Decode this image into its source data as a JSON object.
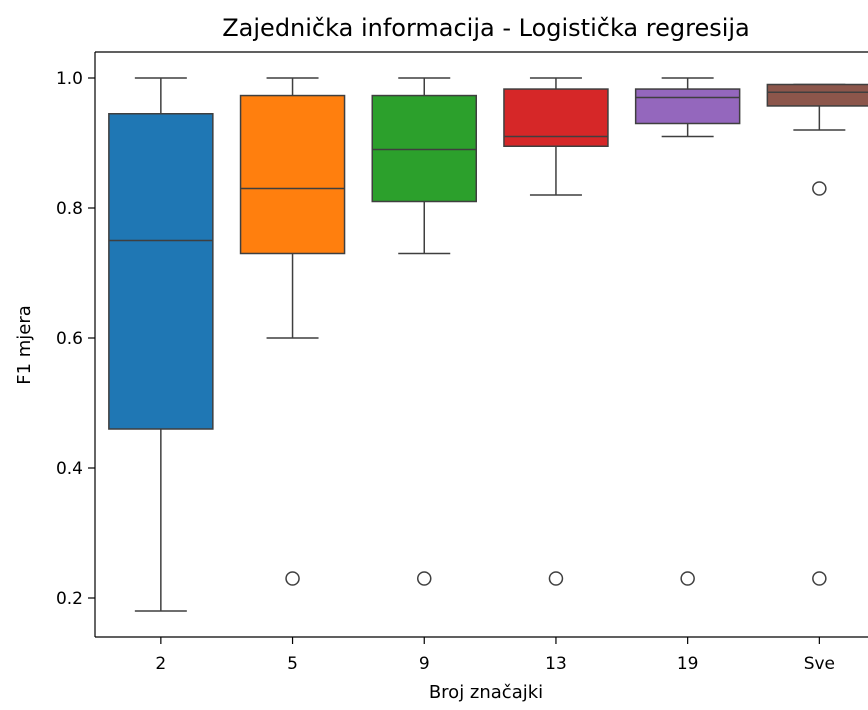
{
  "chart_data": {
    "type": "box",
    "title": "Zajednička informacija - Logistička regresija",
    "xlabel": "Broj značajki",
    "ylabel": "F1 mjera",
    "categories": [
      "2",
      "5",
      "9",
      "13",
      "19",
      "Sve"
    ],
    "yticks": [
      0.2,
      0.4,
      0.6,
      0.8,
      1.0
    ],
    "ytick_labels": [
      "0.2",
      "0.4",
      "0.6",
      "0.8",
      "1.0"
    ],
    "ylim": [
      0.14,
      1.04
    ],
    "grid": false,
    "boxes": [
      {
        "category": "2",
        "color": "#1f77b4",
        "whisker_low": 0.18,
        "q1": 0.46,
        "median": 0.75,
        "q3": 0.945,
        "whisker_high": 1.0,
        "outliers": []
      },
      {
        "category": "5",
        "color": "#ff7f0e",
        "whisker_low": 0.6,
        "q1": 0.73,
        "median": 0.83,
        "q3": 0.973,
        "whisker_high": 1.0,
        "outliers": [
          0.23
        ]
      },
      {
        "category": "9",
        "color": "#2ca02c",
        "whisker_low": 0.73,
        "q1": 0.81,
        "median": 0.89,
        "q3": 0.973,
        "whisker_high": 1.0,
        "outliers": [
          0.23
        ]
      },
      {
        "category": "13",
        "color": "#d62728",
        "whisker_low": 0.82,
        "q1": 0.895,
        "median": 0.91,
        "q3": 0.983,
        "whisker_high": 1.0,
        "outliers": [
          0.23
        ]
      },
      {
        "category": "19",
        "color": "#9467bd",
        "whisker_low": 0.91,
        "q1": 0.93,
        "median": 0.97,
        "q3": 0.983,
        "whisker_high": 1.0,
        "outliers": [
          0.23
        ]
      },
      {
        "category": "Sve",
        "color": "#8c564b",
        "whisker_low": 0.92,
        "q1": 0.957,
        "median": 0.978,
        "q3": 0.99,
        "whisker_high": 0.99,
        "outliers": [
          0.83,
          0.23
        ]
      }
    ]
  }
}
